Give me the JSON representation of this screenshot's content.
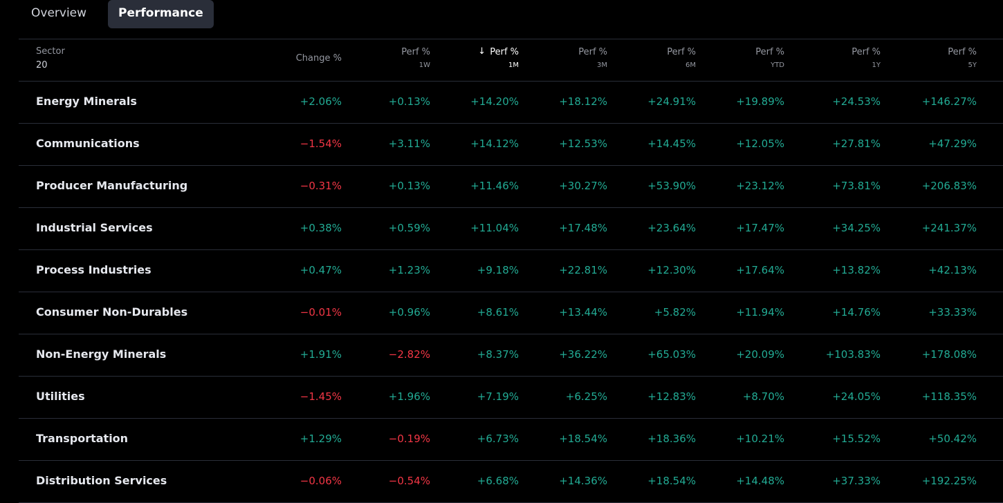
{
  "tabs": [
    "Overview",
    "Performance"
  ],
  "active_tab": 1,
  "table": {
    "sector_header": {
      "label": "Sector",
      "count": 20
    },
    "columns": [
      {
        "label": "Change %"
      },
      {
        "label": "Perf %",
        "sub": "1W"
      },
      {
        "label": "Perf %",
        "sub": "1M",
        "sorted": "desc"
      },
      {
        "label": "Perf %",
        "sub": "3M"
      },
      {
        "label": "Perf %",
        "sub": "6M"
      },
      {
        "label": "Perf %",
        "sub": "YTD"
      },
      {
        "label": "Perf %",
        "sub": "1Y"
      },
      {
        "label": "Perf %",
        "sub": "5Y"
      }
    ],
    "rows": [
      {
        "name": "Energy Minerals",
        "cells": [
          "+2.06%",
          "+0.13%",
          "+14.20%",
          "+18.12%",
          "+24.91%",
          "+19.89%",
          "+24.53%",
          "+146.27%"
        ]
      },
      {
        "name": "Communications",
        "cells": [
          "−1.54%",
          "+3.11%",
          "+14.12%",
          "+12.53%",
          "+14.45%",
          "+12.05%",
          "+27.81%",
          "+47.29%"
        ]
      },
      {
        "name": "Producer Manufacturing",
        "cells": [
          "−0.31%",
          "+0.13%",
          "+11.46%",
          "+30.27%",
          "+53.90%",
          "+23.12%",
          "+73.81%",
          "+206.83%"
        ]
      },
      {
        "name": "Industrial Services",
        "cells": [
          "+0.38%",
          "+0.59%",
          "+11.04%",
          "+17.48%",
          "+23.64%",
          "+17.47%",
          "+34.25%",
          "+241.37%"
        ]
      },
      {
        "name": "Process Industries",
        "cells": [
          "+0.47%",
          "+1.23%",
          "+9.18%",
          "+22.81%",
          "+12.30%",
          "+17.64%",
          "+13.82%",
          "+42.13%"
        ]
      },
      {
        "name": "Consumer Non-Durables",
        "cells": [
          "−0.01%",
          "+0.96%",
          "+8.61%",
          "+13.44%",
          "+5.82%",
          "+11.94%",
          "+14.76%",
          "+33.33%"
        ]
      },
      {
        "name": "Non-Energy Minerals",
        "cells": [
          "+1.91%",
          "−2.82%",
          "+8.37%",
          "+36.22%",
          "+65.03%",
          "+20.09%",
          "+103.83%",
          "+178.08%"
        ]
      },
      {
        "name": "Utilities",
        "cells": [
          "−1.45%",
          "+1.96%",
          "+7.19%",
          "+6.25%",
          "+12.83%",
          "+8.70%",
          "+24.05%",
          "+118.35%"
        ]
      },
      {
        "name": "Transportation",
        "cells": [
          "+1.29%",
          "−0.19%",
          "+6.73%",
          "+18.54%",
          "+18.36%",
          "+10.21%",
          "+15.52%",
          "+50.42%"
        ]
      },
      {
        "name": "Distribution Services",
        "cells": [
          "−0.06%",
          "−0.54%",
          "+6.68%",
          "+14.36%",
          "+18.54%",
          "+14.48%",
          "+37.33%",
          "+192.25%"
        ]
      }
    ]
  }
}
